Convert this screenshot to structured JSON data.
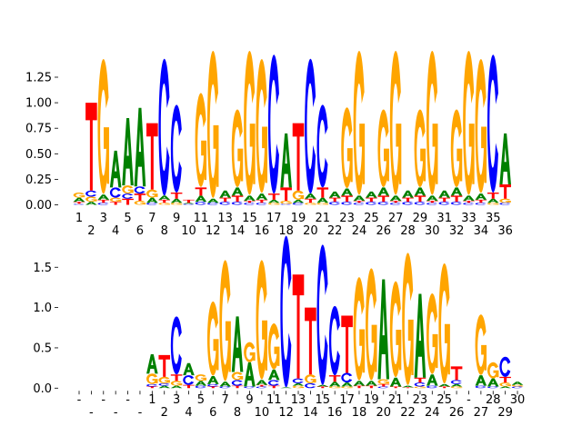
{
  "colors": {
    "A": "#008000",
    "C": "#0000ff",
    "G": "#ffa500",
    "T": "#ff0000"
  },
  "chart_data": [
    {
      "type": "sequence-logo",
      "title": "",
      "ylabel": "",
      "ylim": [
        0,
        1.45
      ],
      "yticks": [
        "0.00",
        "0.25",
        "0.50",
        "0.75",
        "1.00",
        "1.25"
      ],
      "ytick_values": [
        0,
        0.25,
        0.5,
        0.75,
        1.0,
        1.25
      ],
      "xtick_labels": [
        "1",
        "2",
        "3",
        "4",
        "5",
        "6",
        "7",
        "8",
        "9",
        "10",
        "11",
        "12",
        "13",
        "14",
        "15",
        "16",
        "17",
        "18",
        "19",
        "20",
        "21",
        "22",
        "23",
        "24",
        "25",
        "26",
        "27",
        "28",
        "29",
        "30",
        "31",
        "32",
        "33",
        "34",
        "35",
        "36"
      ],
      "stacks": [
        [
          [
            "C",
            0.01
          ],
          [
            "T",
            0.02
          ],
          [
            "A",
            0.04
          ],
          [
            "G",
            0.05
          ]
        ],
        [
          [
            "A",
            0.03
          ],
          [
            "G",
            0.05
          ],
          [
            "C",
            0.06
          ],
          [
            "T",
            0.86
          ]
        ],
        [
          [
            "C",
            0.02
          ],
          [
            "T",
            0.03
          ],
          [
            "A",
            0.05
          ],
          [
            "G",
            1.32
          ]
        ],
        [
          [
            "T",
            0.03
          ],
          [
            "G",
            0.04
          ],
          [
            "C",
            0.1
          ],
          [
            "A",
            0.36
          ]
        ],
        [
          [
            "T",
            0.06
          ],
          [
            "C",
            0.05
          ],
          [
            "G",
            0.08
          ],
          [
            "A",
            0.66
          ]
        ],
        [
          [
            "G",
            0.04
          ],
          [
            "T",
            0.07
          ],
          [
            "C",
            0.07
          ],
          [
            "A",
            0.77
          ]
        ],
        [
          [
            "C",
            0.02
          ],
          [
            "A",
            0.05
          ],
          [
            "G",
            0.08
          ],
          [
            "T",
            0.65
          ]
        ],
        [
          [
            "G",
            0.02
          ],
          [
            "T",
            0.03
          ],
          [
            "A",
            0.04
          ],
          [
            "C",
            1.34
          ]
        ],
        [
          [
            "G",
            0.02
          ],
          [
            "A",
            0.04
          ],
          [
            "T",
            0.06
          ],
          [
            "C",
            0.86
          ]
        ],
        [
          [
            "C",
            0.01
          ],
          [
            "A",
            0.01
          ],
          [
            "T",
            0.03
          ]
        ],
        [
          [
            "C",
            0.03
          ],
          [
            "A",
            0.06
          ],
          [
            "T",
            0.08
          ],
          [
            "G",
            0.92
          ]
        ],
        [
          [
            "C",
            0.02
          ],
          [
            "A",
            0.04
          ],
          [
            "G",
            1.44
          ]
        ],
        [
          [
            "C",
            0.03
          ],
          [
            "T",
            0.04
          ],
          [
            "A",
            0.07
          ]
        ],
        [
          [
            "C",
            0.03
          ],
          [
            "T",
            0.06
          ],
          [
            "A",
            0.08
          ],
          [
            "G",
            0.76
          ]
        ],
        [
          [
            "C",
            0.02
          ],
          [
            "T",
            0.02
          ],
          [
            "A",
            0.05
          ],
          [
            "G",
            1.41
          ]
        ],
        [
          [
            "C",
            0.02
          ],
          [
            "T",
            0.03
          ],
          [
            "A",
            0.06
          ],
          [
            "G",
            1.31
          ]
        ],
        [
          [
            "G",
            0.02
          ],
          [
            "A",
            0.03
          ],
          [
            "T",
            0.06
          ],
          [
            "C",
            1.36
          ]
        ],
        [
          [
            "C",
            0.01
          ],
          [
            "G",
            0.03
          ],
          [
            "T",
            0.13
          ],
          [
            "A",
            0.53
          ]
        ],
        [
          [
            "C",
            0.02
          ],
          [
            "A",
            0.03
          ],
          [
            "G",
            0.09
          ],
          [
            "T",
            0.66
          ]
        ],
        [
          [
            "G",
            0.02
          ],
          [
            "T",
            0.04
          ],
          [
            "A",
            0.05
          ],
          [
            "C",
            1.32
          ]
        ],
        [
          [
            "G",
            0.02
          ],
          [
            "A",
            0.05
          ],
          [
            "T",
            0.1
          ],
          [
            "C",
            0.81
          ]
        ],
        [
          [
            "C",
            0.03
          ],
          [
            "T",
            0.04
          ],
          [
            "A",
            0.06
          ]
        ],
        [
          [
            "C",
            0.03
          ],
          [
            "T",
            0.06
          ],
          [
            "A",
            0.07
          ],
          [
            "G",
            0.79
          ]
        ],
        [
          [
            "C",
            0.02
          ],
          [
            "T",
            0.02
          ],
          [
            "A",
            0.05
          ],
          [
            "G",
            1.41
          ]
        ],
        [
          [
            "C",
            0.03
          ],
          [
            "T",
            0.04
          ],
          [
            "A",
            0.06
          ]
        ],
        [
          [
            "C",
            0.03
          ],
          [
            "T",
            0.06
          ],
          [
            "A",
            0.08
          ],
          [
            "G",
            0.76
          ]
        ],
        [
          [
            "C",
            0.02
          ],
          [
            "T",
            0.02
          ],
          [
            "A",
            0.05
          ],
          [
            "G",
            1.41
          ]
        ],
        [
          [
            "C",
            0.03
          ],
          [
            "T",
            0.04
          ],
          [
            "A",
            0.07
          ]
        ],
        [
          [
            "C",
            0.03
          ],
          [
            "T",
            0.06
          ],
          [
            "A",
            0.08
          ],
          [
            "G",
            0.76
          ]
        ],
        [
          [
            "C",
            0.02
          ],
          [
            "T",
            0.02
          ],
          [
            "A",
            0.05
          ],
          [
            "G",
            1.41
          ]
        ],
        [
          [
            "C",
            0.03
          ],
          [
            "T",
            0.04
          ],
          [
            "A",
            0.07
          ]
        ],
        [
          [
            "C",
            0.03
          ],
          [
            "T",
            0.06
          ],
          [
            "A",
            0.08
          ],
          [
            "G",
            0.76
          ]
        ],
        [
          [
            "C",
            0.02
          ],
          [
            "T",
            0.02
          ],
          [
            "A",
            0.05
          ],
          [
            "G",
            1.41
          ]
        ],
        [
          [
            "C",
            0.02
          ],
          [
            "T",
            0.03
          ],
          [
            "A",
            0.06
          ],
          [
            "G",
            1.31
          ]
        ],
        [
          [
            "G",
            0.02
          ],
          [
            "A",
            0.04
          ],
          [
            "T",
            0.06
          ],
          [
            "C",
            1.35
          ]
        ],
        [
          [
            "C",
            0.02
          ],
          [
            "G",
            0.04
          ],
          [
            "T",
            0.14
          ],
          [
            "A",
            0.5
          ]
        ]
      ]
    },
    {
      "type": "sequence-logo",
      "title": "",
      "ylabel": "",
      "ylim": [
        0,
        1.9
      ],
      "yticks": [
        "0.0",
        "0.5",
        "1.0",
        "1.5"
      ],
      "ytick_values": [
        0,
        0.5,
        1.0,
        1.5
      ],
      "xtick_labels": [
        "-",
        "-",
        "-",
        "-",
        "-",
        "-",
        "1",
        "2",
        "3",
        "4",
        "5",
        "6",
        "7",
        "8",
        "9",
        "10",
        "11",
        "12",
        "13",
        "14",
        "15",
        "16",
        "17",
        "18",
        "19",
        "20",
        "21",
        "22",
        "23",
        "24",
        "25",
        "26",
        "-",
        "27",
        "28",
        "29",
        "30"
      ],
      "stacks": [
        [],
        [],
        [],
        [],
        [],
        [],
        [
          [
            "T",
            0.02
          ],
          [
            "C",
            0.03
          ],
          [
            "G",
            0.13
          ],
          [
            "A",
            0.24
          ]
        ],
        [
          [
            "A",
            0.03
          ],
          [
            "C",
            0.03
          ],
          [
            "G",
            0.08
          ],
          [
            "T",
            0.27
          ]
        ],
        [
          [
            "A",
            0.03
          ],
          [
            "G",
            0.06
          ],
          [
            "T",
            0.08
          ],
          [
            "C",
            0.72
          ]
        ],
        [
          [
            "T",
            0.04
          ],
          [
            "C",
            0.12
          ],
          [
            "A",
            0.15
          ]
        ],
        [
          [
            "C",
            0.03
          ],
          [
            "A",
            0.06
          ],
          [
            "G",
            0.08
          ]
        ],
        [
          [
            "T",
            0.02
          ],
          [
            "C",
            0.03
          ],
          [
            "A",
            0.1
          ],
          [
            "G",
            0.92
          ]
        ],
        [
          [
            "C",
            0.02
          ],
          [
            "A",
            0.06
          ],
          [
            "G",
            1.5
          ]
        ],
        [
          [
            "T",
            0.03
          ],
          [
            "C",
            0.07
          ],
          [
            "G",
            0.1
          ],
          [
            "A",
            0.69
          ]
        ],
        [
          [
            "C",
            0.02
          ],
          [
            "A",
            0.3
          ],
          [
            "G",
            0.25
          ]
        ],
        [
          [
            "C",
            0.02
          ],
          [
            "T",
            0.02
          ],
          [
            "A",
            0.06
          ],
          [
            "G",
            1.48
          ]
        ],
        [
          [
            "T",
            0.03
          ],
          [
            "C",
            0.07
          ],
          [
            "A",
            0.13
          ],
          [
            "G",
            0.57
          ]
        ],
        [
          [
            "A",
            0.01
          ],
          [
            "C",
            1.88
          ]
        ],
        [
          [
            "G",
            0.03
          ],
          [
            "A",
            0.03
          ],
          [
            "C",
            0.06
          ],
          [
            "T",
            1.29
          ]
        ],
        [
          [
            "C",
            0.06
          ],
          [
            "G",
            0.11
          ],
          [
            "T",
            0.83
          ]
        ],
        [
          [
            "T",
            0.02
          ],
          [
            "A",
            0.02
          ],
          [
            "C",
            1.74
          ]
        ],
        [
          [
            "G",
            0.02
          ],
          [
            "A",
            0.06
          ],
          [
            "T",
            0.08
          ],
          [
            "C",
            0.86
          ]
        ],
        [
          [
            "G",
            0.02
          ],
          [
            "A",
            0.05
          ],
          [
            "C",
            0.12
          ],
          [
            "T",
            0.71
          ]
        ],
        [
          [
            "T",
            0.03
          ],
          [
            "A",
            0.06
          ],
          [
            "G",
            1.28
          ]
        ],
        [
          [
            "T",
            0.03
          ],
          [
            "A",
            0.06
          ],
          [
            "G",
            1.39
          ]
        ],
        [
          [
            "C",
            0.02
          ],
          [
            "T",
            0.03
          ],
          [
            "G",
            0.06
          ],
          [
            "A",
            1.24
          ]
        ],
        [
          [
            "T",
            0.02
          ],
          [
            "A",
            0.11
          ],
          [
            "G",
            1.19
          ]
        ],
        [
          [
            "T",
            0.01
          ],
          [
            "A",
            0.02
          ],
          [
            "G",
            1.64
          ]
        ],
        [
          [
            "G",
            0.02
          ],
          [
            "C",
            0.05
          ],
          [
            "T",
            0.06
          ],
          [
            "A",
            1.04
          ]
        ],
        [
          [
            "C",
            0.03
          ],
          [
            "A",
            0.14
          ],
          [
            "G",
            1.0
          ]
        ],
        [
          [
            "T",
            0.02
          ],
          [
            "A",
            0.03
          ],
          [
            "G",
            1.49
          ]
        ],
        [
          [
            "G",
            0.02
          ],
          [
            "A",
            0.03
          ],
          [
            "C",
            0.05
          ],
          [
            "T",
            0.17
          ]
        ],
        [],
        [
          [
            "C",
            0.03
          ],
          [
            "A",
            0.13
          ],
          [
            "G",
            0.75
          ]
        ],
        [
          [
            "C",
            0.02
          ],
          [
            "A",
            0.1
          ],
          [
            "G",
            0.2
          ]
        ],
        [
          [
            "A",
            0.02
          ],
          [
            "G",
            0.05
          ],
          [
            "T",
            0.07
          ],
          [
            "C",
            0.25
          ]
        ],
        [
          [
            "C",
            0.02
          ],
          [
            "G",
            0.02
          ],
          [
            "A",
            0.04
          ]
        ]
      ]
    }
  ]
}
